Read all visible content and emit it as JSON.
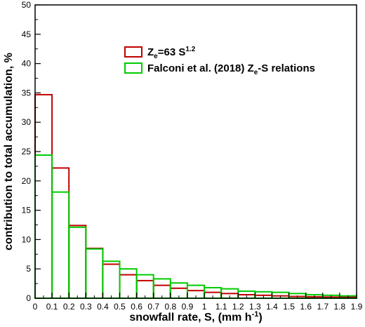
{
  "chart_data": {
    "type": "bar",
    "xlabel_main": "snowfall rate, S, (mm h",
    "xlabel_sup": "-1",
    "xlabel_close": ")",
    "ylabel": "contribution to total accumulation, %",
    "xlim": [
      0,
      1.9
    ],
    "ylim": [
      0,
      50
    ],
    "xticks": [
      "0",
      "0.1",
      "0.2",
      "0.3",
      "0.4",
      "0.5",
      "0.6",
      "0.7",
      "0.8",
      "0.9",
      "1",
      "1.1",
      "1.2",
      "1.3",
      "1.4",
      "1.5",
      "1.6",
      "1.7",
      "1.8",
      "1.9"
    ],
    "yticks": [
      "0",
      "5",
      "10",
      "15",
      "20",
      "25",
      "30",
      "35",
      "40",
      "45",
      "50"
    ],
    "bin_edges": [
      0,
      0.1,
      0.2,
      0.3,
      0.4,
      0.5,
      0.6,
      0.7,
      0.8,
      0.9,
      1.0,
      1.1,
      1.2,
      1.3,
      1.4,
      1.5,
      1.6,
      1.7,
      1.8,
      1.9
    ],
    "series": [
      {
        "legend_main": "Z",
        "legend_sub": "e",
        "legend_rest": "=63 S",
        "legend_sup": "1.2",
        "color": "#c00000",
        "values": [
          34.7,
          22.2,
          12.4,
          8.5,
          5.8,
          4.0,
          3.0,
          2.2,
          1.7,
          1.3,
          1.0,
          0.8,
          0.6,
          0.5,
          0.4,
          0.3,
          0.25,
          0.2,
          0.2
        ]
      },
      {
        "legend_main": "Falconi et al. (2018) Z",
        "legend_sub": "e",
        "legend_rest": "-S relations",
        "legend_sup": "",
        "color": "#00cc00",
        "values": [
          24.4,
          18.1,
          12.1,
          8.4,
          6.3,
          5.0,
          4.0,
          3.3,
          2.6,
          2.2,
          1.8,
          1.6,
          1.2,
          1.1,
          1.0,
          0.8,
          0.6,
          0.5,
          0.4
        ]
      }
    ],
    "legend_position": "top-right",
    "grid": false
  }
}
